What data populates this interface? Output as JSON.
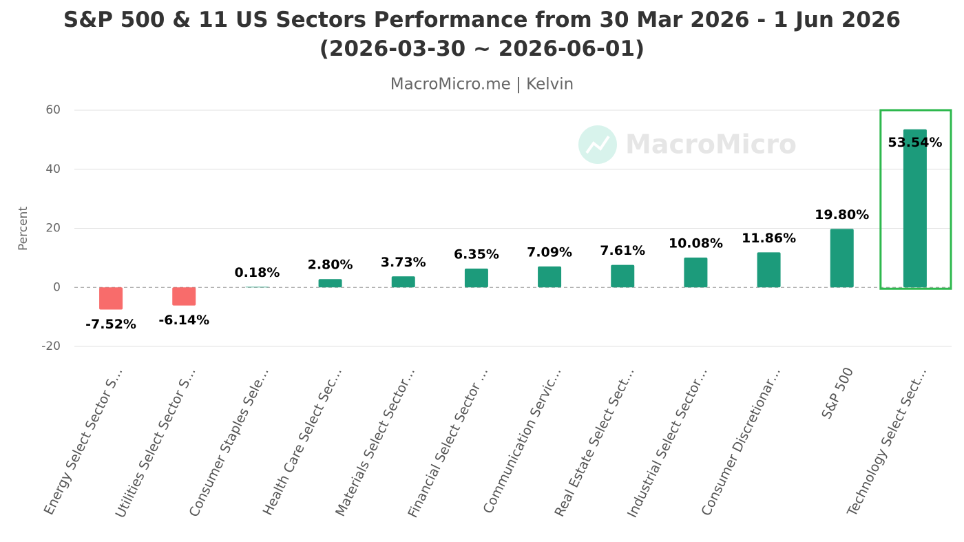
{
  "chart_data": {
    "type": "bar",
    "title": "S&P 500 & 11 US Sectors Performance from 30 Mar 2026 - 1 Jun 2026 (2026-03-30 ~ 2026-06-01)",
    "subtitle": "MacroMicro.me | Kelvin",
    "watermark": "MacroMicro",
    "y_label": "Percent",
    "categories": [
      "Energy Select Sector S…",
      "Utilities Select Sector S…",
      "Consumer Staples Sele…",
      "Health Care Select Sec…",
      "Materials Select Sector…",
      "Financial Select Sector …",
      "Communication Servic…",
      "Real Estate Select Sect…",
      "Industrial Select Sector…",
      "Consumer Discretionar…",
      "S&P 500",
      "Technology Select Sect…"
    ],
    "values": [
      -7.52,
      -6.14,
      0.18,
      2.8,
      3.73,
      6.35,
      7.09,
      7.61,
      10.08,
      11.86,
      19.8,
      53.54
    ],
    "value_labels": [
      "-7.52%",
      "-6.14%",
      "0.18%",
      "2.80%",
      "3.73%",
      "6.35%",
      "7.09%",
      "7.61%",
      "10.08%",
      "11.86%",
      "19.80%",
      "53.54%"
    ],
    "colors": [
      "#f86c6b",
      "#f86c6b",
      "#1c9b7b",
      "#1c9b7b",
      "#1c9b7b",
      "#1c9b7b",
      "#1c9b7b",
      "#1c9b7b",
      "#1c9b7b",
      "#1c9b7b",
      "#1c9b7b",
      "#1c9b7b"
    ],
    "highlight_index": 11,
    "highlight_color": "#2db84d",
    "ylim": [
      -20,
      60
    ],
    "yticks": [
      -20,
      0,
      20,
      40,
      60
    ],
    "grid": true
  }
}
